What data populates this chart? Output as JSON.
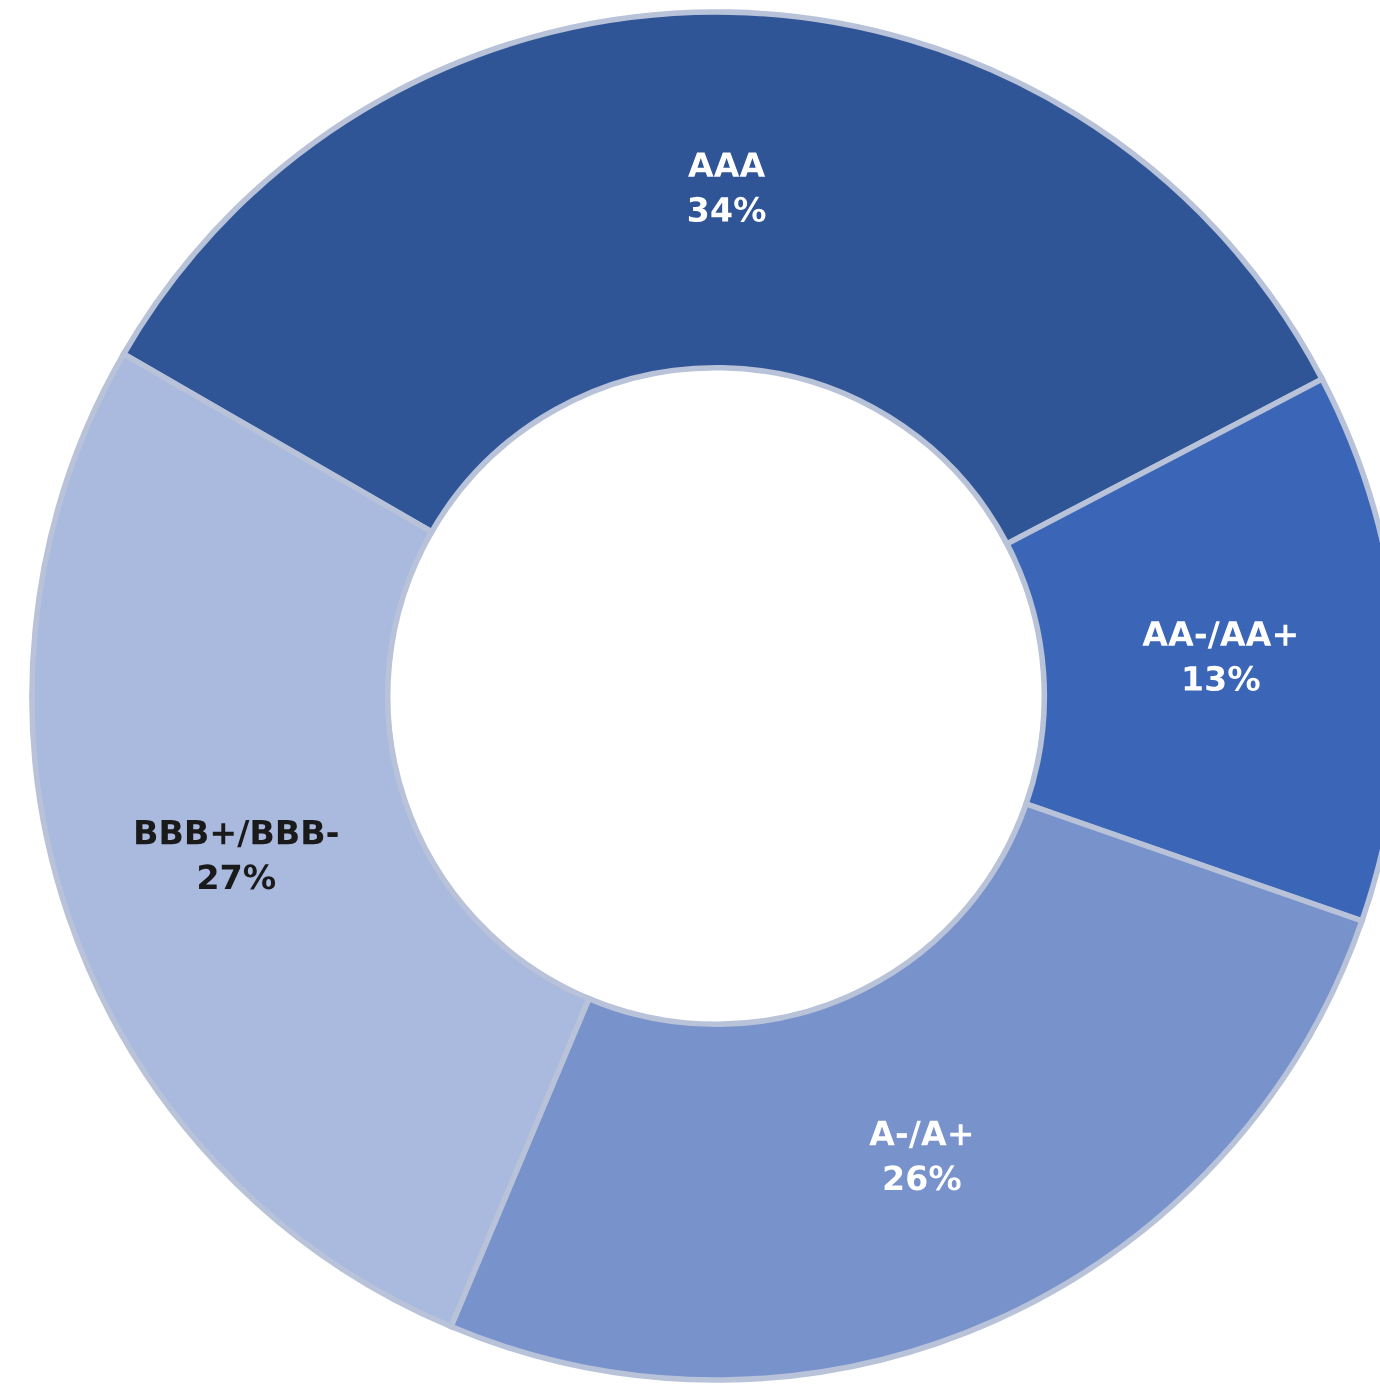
{
  "chart_data": {
    "type": "donut",
    "categories": [
      "AAA",
      "AA-/AA+",
      "A-/A+",
      "BBB+/BBB-"
    ],
    "values": [
      34,
      13,
      26,
      27
    ],
    "colors": [
      "#2f5597",
      "#3b66b8",
      "#7892cc",
      "#aab9de"
    ],
    "value_labels": [
      "34%",
      "13%",
      "26%",
      "27%"
    ],
    "legend": false
  }
}
